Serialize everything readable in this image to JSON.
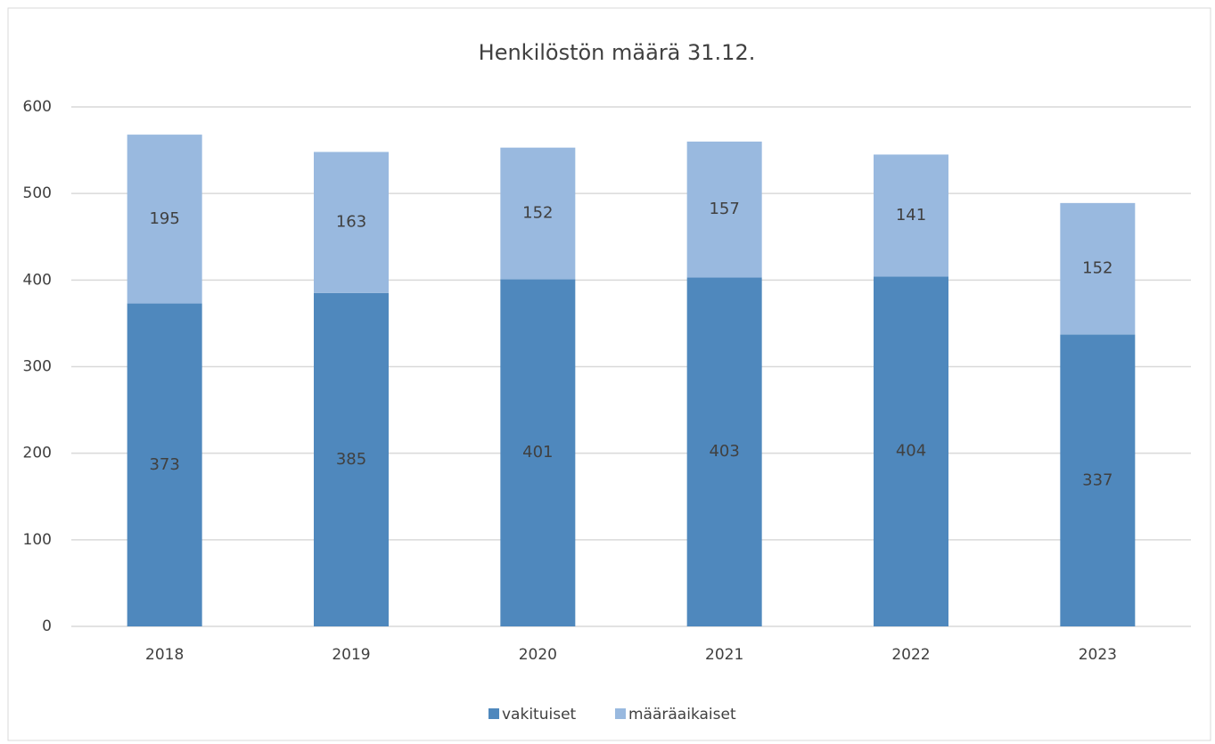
{
  "chart_data": {
    "type": "stacked_bar",
    "title": "Henkilöstön määrä 31.12.",
    "categories": [
      "2018",
      "2019",
      "2020",
      "2021",
      "2022",
      "2023"
    ],
    "series": [
      {
        "name": "vakituiset",
        "color": "#4f88bd",
        "values": [
          373,
          385,
          401,
          403,
          404,
          337
        ]
      },
      {
        "name": "määräaikaiset",
        "color": "#99b9df",
        "values": [
          195,
          163,
          152,
          157,
          141,
          152
        ]
      }
    ],
    "ylim": [
      0,
      600
    ],
    "yticks": [
      0,
      100,
      200,
      300,
      400,
      500,
      600
    ],
    "grid": true,
    "legend": "bottom"
  }
}
